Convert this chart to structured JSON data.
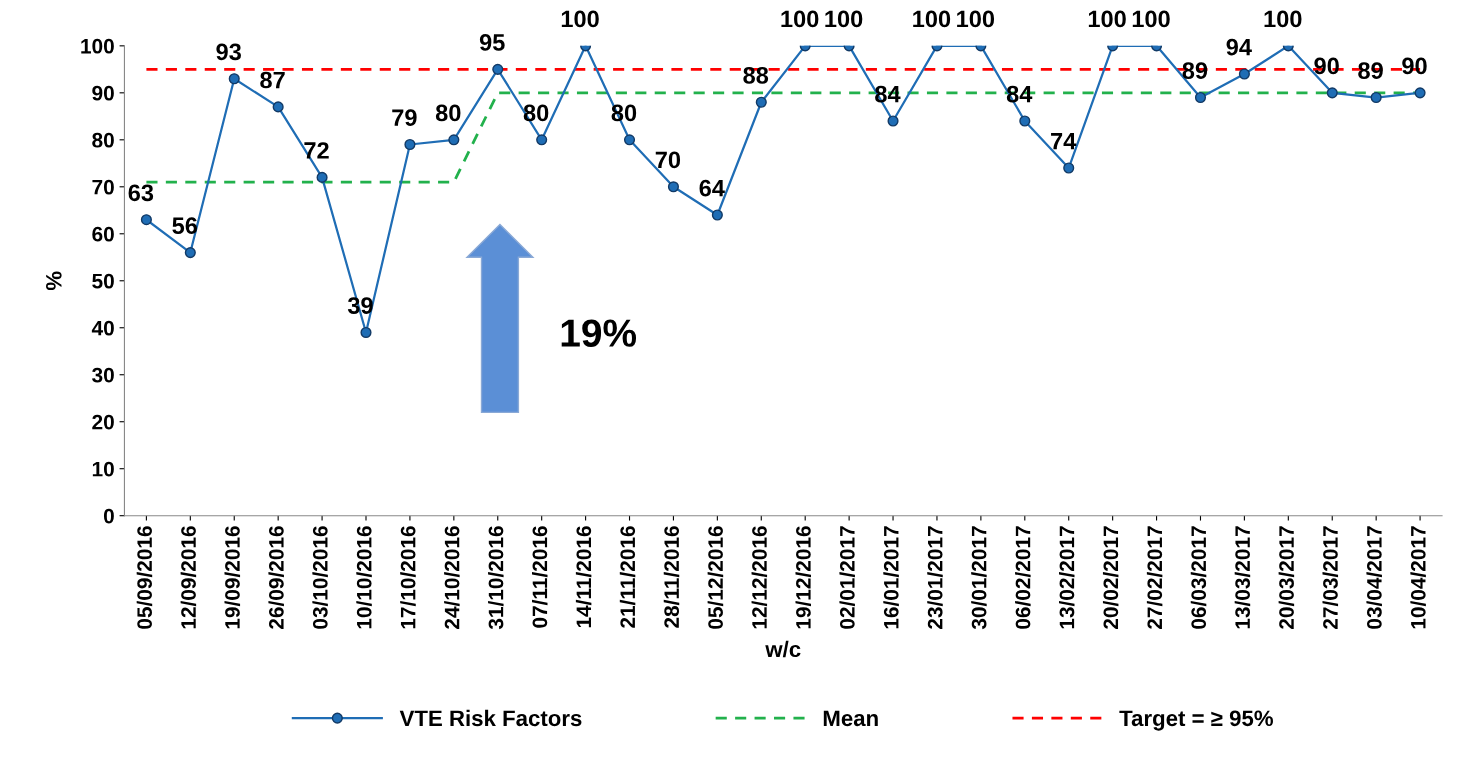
{
  "chart_data": {
    "type": "line",
    "xlabel": "w/c",
    "ylabel": "%",
    "categories": [
      "05/09/2016",
      "12/09/2016",
      "19/09/2016",
      "26/09/2016",
      "03/10/2016",
      "10/10/2016",
      "17/10/2016",
      "24/10/2016",
      "31/10/2016",
      "07/11/2016",
      "14/11/2016",
      "21/11/2016",
      "28/11/2016",
      "05/12/2016",
      "12/12/2016",
      "19/12/2016",
      "02/01/2017",
      "16/01/2017",
      "23/01/2017",
      "30/01/2017",
      "06/02/2017",
      "13/02/2017",
      "20/02/2017",
      "27/02/2017",
      "06/03/2017",
      "13/03/2017",
      "20/03/2017",
      "27/03/2017",
      "03/04/2017",
      "10/04/2017"
    ],
    "series": [
      {
        "name": "VTE Risk Factors",
        "color": "#1f6db5",
        "marker": "circle",
        "line_style": "solid",
        "data_labels": true,
        "values": [
          63,
          56,
          93,
          87,
          72,
          39,
          79,
          80,
          95,
          80,
          100,
          80,
          70,
          64,
          88,
          100,
          100,
          84,
          100,
          100,
          84,
          74,
          100,
          100,
          89,
          94,
          100,
          90,
          89,
          90
        ]
      },
      {
        "name": "Mean",
        "color": "#22b14c",
        "marker": "none",
        "line_style": "dashed",
        "values": [
          71,
          71,
          71,
          71,
          71,
          71,
          71,
          71,
          90,
          90,
          90,
          90,
          90,
          90,
          90,
          90,
          90,
          90,
          90,
          90,
          90,
          90,
          90,
          90,
          90,
          90,
          90,
          90,
          90,
          90
        ]
      },
      {
        "name": "Target = ≥ 95%",
        "color": "#ff0000",
        "marker": "none",
        "line_style": "dashed",
        "values": [
          95,
          95,
          95,
          95,
          95,
          95,
          95,
          95,
          95,
          95,
          95,
          95,
          95,
          95,
          95,
          95,
          95,
          95,
          95,
          95,
          95,
          95,
          95,
          95,
          95,
          95,
          95,
          95,
          95,
          95
        ]
      }
    ],
    "ylim": [
      0,
      100
    ],
    "yticks": [
      0,
      10,
      20,
      30,
      40,
      50,
      60,
      70,
      80,
      90,
      100
    ],
    "grid": false,
    "legend": "bottom",
    "annotations": [
      "19%"
    ]
  }
}
